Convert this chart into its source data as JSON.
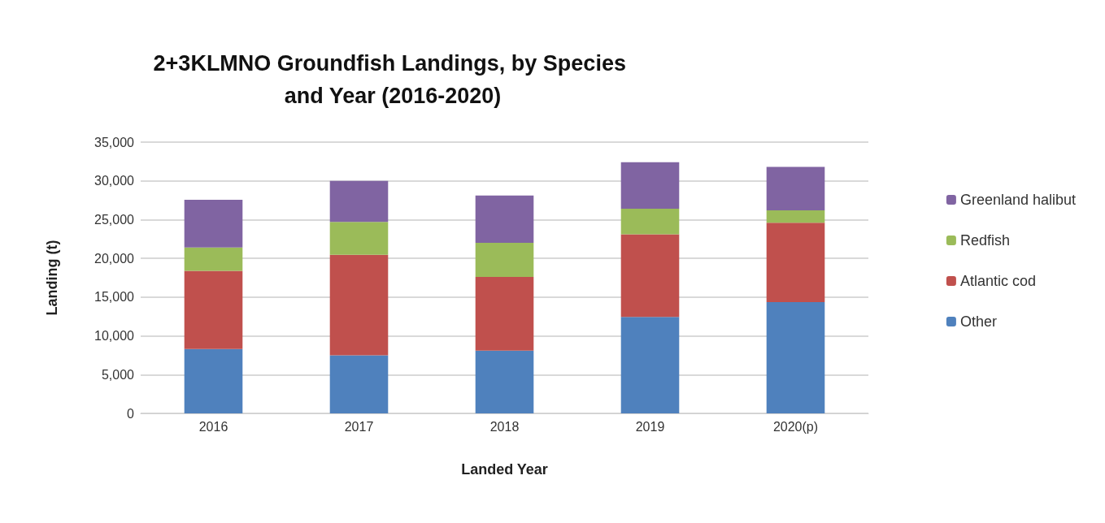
{
  "chart_data": {
    "type": "bar",
    "title": "2+3KLMNO Groundfish Landings, by Species and Year (2016-2020)",
    "xlabel": "Landed Year",
    "ylabel": "Landing (t)",
    "categories": [
      "2016",
      "2017",
      "2018",
      "2019",
      "2020(p)"
    ],
    "stacked": true,
    "series": [
      {
        "name": "Other",
        "color": "#4f81bd",
        "values": [
          8300,
          7500,
          8100,
          12450,
          14350
        ]
      },
      {
        "name": "Atlantic cod",
        "color": "#c0504d",
        "values": [
          10100,
          12950,
          9500,
          10650,
          10250
        ]
      },
      {
        "name": "Redfish",
        "color": "#9bbb59",
        "values": [
          3000,
          4250,
          4400,
          3300,
          1600
        ]
      },
      {
        "name": "Greenland halibut",
        "color": "#8064a2",
        "values": [
          6150,
          5300,
          6100,
          6000,
          5600
        ]
      }
    ],
    "ylim": [
      0,
      35000
    ],
    "yticks": [
      {
        "value": 0,
        "label": "0"
      },
      {
        "value": 5000,
        "label": "5,000"
      },
      {
        "value": 10000,
        "label": "10,000"
      },
      {
        "value": 15000,
        "label": "15,000"
      },
      {
        "value": 20000,
        "label": "20,000"
      },
      {
        "value": 25000,
        "label": "25,000"
      },
      {
        "value": 30000,
        "label": "30,000"
      },
      {
        "value": 35000,
        "label": "35,000"
      }
    ],
    "grid": "y",
    "legend": "right"
  }
}
